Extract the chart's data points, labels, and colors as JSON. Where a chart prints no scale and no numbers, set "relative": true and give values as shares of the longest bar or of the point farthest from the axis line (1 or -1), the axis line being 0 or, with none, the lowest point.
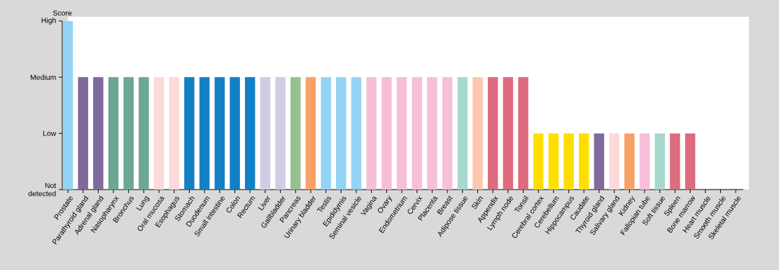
{
  "chart_data": {
    "type": "bar",
    "ylabel": "Score",
    "relative": true,
    "categories": [
      "Prostate",
      "Parathyroid gland",
      "Adrenal gland",
      "Nasopharynx",
      "Bronchus",
      "Lung",
      "Oral mucosa",
      "Esophagus",
      "Stomach",
      "Duodenum",
      "Small intestine",
      "Colon",
      "Rectum",
      "Liver",
      "Gallbladder",
      "Pancreas",
      "Urinary bladder",
      "Testis",
      "Epididymis",
      "Seminal vesicle",
      "Vagina",
      "Ovary",
      "Endometrium",
      "Cervix",
      "Placenta",
      "Breast",
      "Adipose tissue",
      "Skin",
      "Appendix",
      "Lymph node",
      "Tonsil",
      "Cerebral cortex",
      "Cerebellum",
      "Hippocampus",
      "Caudate",
      "Thyroid gland",
      "Salivary gland",
      "Kidney",
      "Fallopian tube",
      "Soft tissue",
      "Spleen",
      "Bone marrow",
      "Heart muscle",
      "Smooth muscle",
      "Skeletal muscle"
    ],
    "values": [
      1,
      0.667,
      0.667,
      0.667,
      0.667,
      0.667,
      0.667,
      0.667,
      0.667,
      0.667,
      0.667,
      0.667,
      0.667,
      0.667,
      0.667,
      0.667,
      0.667,
      0.667,
      0.667,
      0.667,
      0.667,
      0.667,
      0.667,
      0.667,
      0.667,
      0.667,
      0.667,
      0.667,
      0.667,
      0.667,
      0.667,
      0.333,
      0.333,
      0.333,
      0.333,
      0.333,
      0.333,
      0.333,
      0.333,
      0.333,
      0.333,
      0.333,
      0,
      0,
      0
    ],
    "colors": [
      "#95d3f5",
      "#7f6a9c",
      "#7f6a9c",
      "#6ba792",
      "#6ba792",
      "#6ba792",
      "#fcd9da",
      "#fcd9da",
      "#1280c4",
      "#1280c4",
      "#1280c4",
      "#1280c4",
      "#1280c4",
      "#d1cbe5",
      "#d1cbe5",
      "#96c08e",
      "#f7a166",
      "#95d3f5",
      "#95d3f5",
      "#95d3f5",
      "#f7bed9",
      "#f7bed9",
      "#f7bed9",
      "#f7bed9",
      "#f7bed9",
      "#f7bed9",
      "#a6d9cc",
      "#fdc8af",
      "#de6b7e",
      "#de6b7e",
      "#de6b7e",
      "#fedf01",
      "#fedf01",
      "#fedf01",
      "#fedf01",
      "#7f6a9c",
      "#fcd9da",
      "#f7a166",
      "#f7bed9",
      "#a6d9cc",
      "#de6b7e",
      "#de6b7e",
      "#d9d9d9",
      "#d9d9d9",
      "#d9d9d9"
    ],
    "annotations": [
      "Not detected",
      "Low",
      "Medium",
      "High"
    ]
  }
}
